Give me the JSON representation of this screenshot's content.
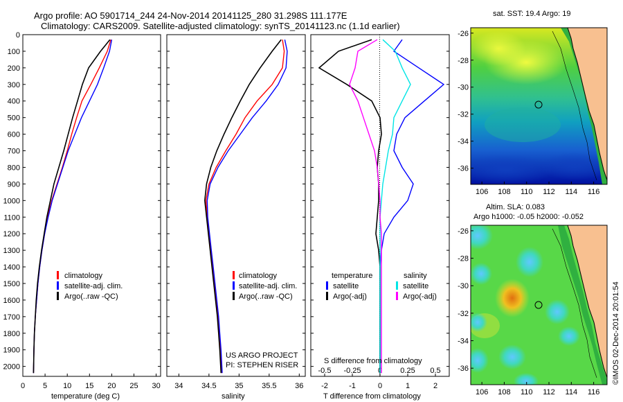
{
  "header": {
    "title_line1": "Argo profile: AO 5901714_244 24-Nov-2014 20141125_280 31.298S 111.177E",
    "title_line2": "Climatology: CARS2009. Satellite-adjusted climatology: synTS_20141123.nc (1.1d earlier)"
  },
  "timestamp": "©IMOS 02-Dec-2014 20:01:54",
  "colors": {
    "climatology": "#ff0000",
    "satellite": "#0000ff",
    "argo": "#000000",
    "sat_salinity": "#00e5e5",
    "argo_salinity": "#ff00ff",
    "land": "#f8c090"
  },
  "chart_data": [
    {
      "type": "line",
      "panel": "temperature",
      "xlabel": "temperature (deg C)",
      "ylabel": "",
      "xlim": [
        0,
        31
      ],
      "ylim": [
        2060,
        0
      ],
      "xticks": [
        0,
        5,
        10,
        15,
        20,
        25,
        30
      ],
      "yticks": [
        0,
        100,
        200,
        300,
        400,
        500,
        600,
        700,
        800,
        900,
        1000,
        1100,
        1200,
        1300,
        1400,
        1500,
        1600,
        1700,
        1800,
        1900,
        2000
      ],
      "legend": [
        "climatology",
        "satellite-adj. clim.",
        "Argo(..raw -QC)"
      ],
      "series": [
        {
          "name": "climatology",
          "color": "#ff0000",
          "x": [
            19.8,
            19.0,
            17.2,
            15.3,
            13.3,
            12.1,
            11.0,
            10.0,
            8.9,
            7.7,
            6.5,
            5.6,
            4.9,
            4.3,
            3.8,
            3.4,
            3.1,
            2.8,
            2.6,
            2.5,
            2.4
          ],
          "y": [
            30,
            100,
            200,
            300,
            400,
            500,
            600,
            700,
            800,
            900,
            1000,
            1100,
            1200,
            1300,
            1400,
            1500,
            1600,
            1700,
            1800,
            1900,
            2040
          ]
        },
        {
          "name": "satellite-adj. clim.",
          "color": "#0000ff",
          "x": [
            20.0,
            19.5,
            18.2,
            16.8,
            15.0,
            13.2,
            11.7,
            10.2,
            9.0,
            7.8,
            6.6,
            5.7,
            4.9,
            4.3,
            3.8,
            3.4,
            3.1,
            2.8,
            2.6,
            2.5,
            2.4
          ],
          "y": [
            30,
            100,
            200,
            300,
            400,
            500,
            600,
            700,
            800,
            900,
            1000,
            1100,
            1200,
            1300,
            1400,
            1500,
            1600,
            1700,
            1800,
            1900,
            2040
          ]
        },
        {
          "name": "Argo(..raw -QC)",
          "color": "#000000",
          "x": [
            19.6,
            17.5,
            14.8,
            13.4,
            12.3,
            11.2,
            10.2,
            9.2,
            8.1,
            7.0,
            6.2,
            5.4,
            4.8,
            4.2,
            3.7,
            3.3,
            3.0,
            2.8,
            2.6,
            2.5,
            2.4
          ],
          "y": [
            30,
            100,
            200,
            300,
            400,
            500,
            600,
            700,
            800,
            900,
            1000,
            1100,
            1200,
            1300,
            1400,
            1500,
            1600,
            1700,
            1800,
            1900,
            2040
          ]
        }
      ]
    },
    {
      "type": "line",
      "panel": "salinity",
      "xlabel": "salinity",
      "xlim": [
        33.8,
        36.1
      ],
      "ylim": [
        2060,
        0
      ],
      "xticks": [
        34,
        34.5,
        35,
        35.5,
        36
      ],
      "legend": [
        "climatology",
        "satellite-adj. clim.",
        "Argo(..raw -QC)"
      ],
      "annotation": [
        "US ARGO PROJECT",
        "PI: STEPHEN RISER"
      ],
      "series": [
        {
          "name": "climatology",
          "color": "#ff0000",
          "x": [
            35.72,
            35.75,
            35.72,
            35.55,
            35.3,
            35.1,
            34.95,
            34.78,
            34.62,
            34.5,
            34.45,
            34.47,
            34.5,
            34.53,
            34.56,
            34.59,
            34.62,
            34.65,
            34.67,
            34.69,
            34.71
          ],
          "y": [
            30,
            100,
            200,
            300,
            400,
            500,
            600,
            700,
            800,
            900,
            1000,
            1100,
            1200,
            1300,
            1400,
            1500,
            1600,
            1700,
            1800,
            1900,
            2040
          ]
        },
        {
          "name": "satellite-adj. clim.",
          "color": "#0000ff",
          "x": [
            35.76,
            35.8,
            35.78,
            35.65,
            35.45,
            35.22,
            35.02,
            34.82,
            34.65,
            34.52,
            34.47,
            34.48,
            34.51,
            34.54,
            34.57,
            34.6,
            34.63,
            34.66,
            34.68,
            34.7,
            34.72
          ],
          "y": [
            30,
            100,
            200,
            300,
            400,
            500,
            600,
            700,
            800,
            900,
            1000,
            1100,
            1200,
            1300,
            1400,
            1500,
            1600,
            1700,
            1800,
            1900,
            2040
          ]
        },
        {
          "name": "Argo(..raw -QC)",
          "color": "#000000",
          "x": [
            35.7,
            35.55,
            35.35,
            35.17,
            35.02,
            34.88,
            34.75,
            34.63,
            34.53,
            34.46,
            34.43,
            34.46,
            34.49,
            34.52,
            34.55,
            34.58,
            34.61,
            34.64,
            34.66,
            34.68,
            34.7
          ],
          "y": [
            30,
            100,
            200,
            300,
            400,
            500,
            600,
            700,
            800,
            900,
            1000,
            1100,
            1200,
            1300,
            1400,
            1500,
            1600,
            1700,
            1800,
            1900,
            2040
          ]
        }
      ]
    },
    {
      "type": "line",
      "panel": "difference",
      "xlabel": "T difference from climatology",
      "xlabel_top": "S difference from climatology",
      "xlim": [
        -2.5,
        2.5
      ],
      "ylim": [
        2060,
        0
      ],
      "xticks_T": [
        -2,
        -1,
        0,
        1,
        2
      ],
      "xticks_S_labels": [
        "-0.5",
        "-0.25",
        "0",
        "0.25",
        "0.5"
      ],
      "xticks_S_values": [
        -0.5,
        -0.25,
        0,
        0.25,
        0.5
      ],
      "legend": {
        "temperature": {
          "heading": "temperature",
          "items": [
            "satellite",
            "Argo(-adj)"
          ]
        },
        "salinity": {
          "heading": "salinity",
          "items": [
            "satellite",
            "Argo(-adj)"
          ]
        }
      },
      "series": [
        {
          "name": "temperature satellite",
          "color": "#0000ff",
          "x": [
            0.8,
            0.5,
            1.4,
            2.3,
            1.6,
            0.9,
            0.6,
            0.5,
            0.8,
            1.2,
            1.0,
            0.5,
            0.15,
            0.05,
            0.0,
            0.0,
            0.0,
            0.0,
            0.0,
            0.0,
            0.0
          ],
          "y": [
            30,
            100,
            200,
            300,
            400,
            500,
            600,
            700,
            800,
            900,
            1000,
            1100,
            1200,
            1300,
            1400,
            1500,
            1600,
            1700,
            1800,
            1900,
            2040
          ]
        },
        {
          "name": "temperature Argo(-adj)",
          "color": "#000000",
          "x": [
            -0.3,
            -1.5,
            -2.2,
            -1.2,
            -0.3,
            0.0,
            0.05,
            -0.05,
            -0.1,
            -0.05,
            -0.05,
            -0.1,
            -0.15,
            -0.05,
            0.0,
            0.0,
            0.0,
            0.0,
            0.0,
            0.0,
            0.0
          ],
          "y": [
            30,
            100,
            200,
            300,
            400,
            500,
            600,
            700,
            800,
            900,
            1000,
            1100,
            1200,
            1300,
            1400,
            1500,
            1600,
            1700,
            1800,
            1900,
            2040
          ]
        },
        {
          "name": "salinity satellite",
          "color": "#00e5e5",
          "x": [
            0.1,
            0.55,
            0.8,
            1.1,
            0.8,
            0.5,
            0.45,
            0.3,
            0.2,
            0.1,
            0.05,
            0.0,
            0.0,
            0.0,
            0.0,
            0.0,
            0.0,
            0.0,
            0.0,
            0.0,
            0.0
          ],
          "y": [
            30,
            100,
            200,
            300,
            400,
            500,
            600,
            700,
            800,
            900,
            1000,
            1100,
            1200,
            1300,
            1400,
            1500,
            1600,
            1700,
            1800,
            1900,
            2040
          ]
        },
        {
          "name": "salinity Argo(-adj)",
          "color": "#ff00ff",
          "x": [
            -0.1,
            -0.8,
            -0.9,
            -1.1,
            -0.8,
            -0.6,
            -0.4,
            -0.2,
            -0.1,
            -0.05,
            0.0,
            0.0,
            0.05,
            0.05,
            0.05,
            0.05,
            0.05,
            0.05,
            0.05,
            0.05,
            0.05
          ],
          "y": [
            30,
            100,
            200,
            300,
            400,
            500,
            600,
            700,
            800,
            900,
            1000,
            1100,
            1200,
            1300,
            1400,
            1500,
            1600,
            1700,
            1800,
            1900,
            2040
          ]
        }
      ]
    },
    {
      "type": "heatmap",
      "panel": "map_sst",
      "title": "sat. SST: 19.4  Argo: 19",
      "xlim": [
        105,
        117.2
      ],
      "ylim": [
        -37.2,
        -25.6
      ],
      "xticks": [
        106,
        108,
        110,
        112,
        114,
        116
      ],
      "yticks": [
        -26,
        -28,
        -30,
        -32,
        -34,
        -36
      ],
      "marker": {
        "lon": 111.177,
        "lat": -31.298
      }
    },
    {
      "type": "heatmap",
      "panel": "map_sla",
      "title_line1": "Altim. SLA: 0.083",
      "title_line2": "Argo h1000: -0.05 h2000: -0.052",
      "xlim": [
        105,
        117.2
      ],
      "ylim": [
        -37.2,
        -25.6
      ],
      "xticks": [
        106,
        108,
        110,
        112,
        114,
        116
      ],
      "yticks": [
        -26,
        -28,
        -30,
        -32,
        -34,
        -36
      ],
      "marker": {
        "lon": 111.177,
        "lat": -31.298
      }
    }
  ]
}
